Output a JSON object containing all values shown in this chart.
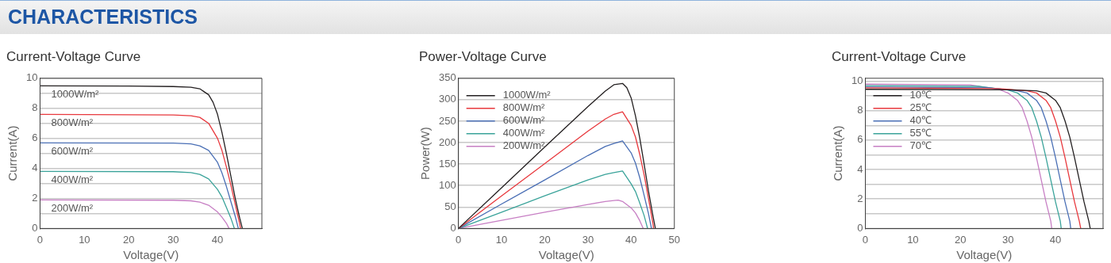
{
  "chart_data": [
    {
      "type": "other",
      "title": "CHARACTERISTICS"
    },
    {
      "type": "line",
      "title": "Current-Voltage Curve",
      "xlabel": "Voltage(V)",
      "ylabel": "Current(A)",
      "xlim": [
        0,
        50
      ],
      "xticks": [
        0,
        10,
        20,
        30,
        40
      ],
      "ylim": [
        0,
        10
      ],
      "yticks": [
        0,
        {
          "value": 1,
          "label": null
        },
        2,
        {
          "value": 3,
          "label": null
        },
        4,
        {
          "value": 5,
          "label": null
        },
        6,
        {
          "value": 7,
          "label": null
        },
        8,
        {
          "value": 9,
          "label": null
        },
        10
      ],
      "grid": "y",
      "legend": false,
      "marker": "none",
      "series": [
        {
          "name": "1000W/m²",
          "color": "#231f20",
          "x": [
            0,
            20,
            30,
            34,
            36,
            38,
            39,
            40,
            41,
            42,
            43,
            44,
            45,
            45.6
          ],
          "values": [
            9.5,
            9.48,
            9.45,
            9.4,
            9.3,
            8.9,
            8.4,
            7.6,
            6.4,
            5,
            3.5,
            2,
            0.7,
            0
          ]
        },
        {
          "name": "800W/m²",
          "color": "#e8383d",
          "x": [
            0,
            30,
            34,
            36,
            38,
            40,
            41,
            42,
            43,
            44,
            45,
            45.2
          ],
          "values": [
            7.6,
            7.56,
            7.5,
            7.4,
            7.0,
            6.0,
            5.2,
            4.1,
            2.9,
            1.6,
            0.3,
            0
          ]
        },
        {
          "name": "600W/m²",
          "color": "#4a6fb5",
          "x": [
            0,
            30,
            34,
            36,
            38,
            40,
            41,
            42,
            43,
            44,
            44.7
          ],
          "values": [
            5.7,
            5.68,
            5.63,
            5.5,
            5.2,
            4.4,
            3.7,
            2.8,
            1.8,
            0.8,
            0
          ]
        },
        {
          "name": "400W/m²",
          "color": "#3aa39a",
          "x": [
            0,
            30,
            34,
            36,
            38,
            40,
            41,
            42,
            43,
            43.8
          ],
          "values": [
            3.8,
            3.78,
            3.72,
            3.6,
            3.3,
            2.6,
            2.1,
            1.4,
            0.7,
            0
          ]
        },
        {
          "name": "200W/m²",
          "color": "#c77fc4",
          "x": [
            0,
            30,
            34,
            36,
            38,
            40,
            41,
            42,
            42.6
          ],
          "values": [
            1.9,
            1.88,
            1.84,
            1.75,
            1.55,
            1.1,
            0.75,
            0.35,
            0
          ]
        }
      ]
    },
    {
      "type": "line",
      "title": "Power-Voltage Curve",
      "xlabel": "Voltage(V)",
      "ylabel": "Power(W)",
      "xlim": [
        0,
        50
      ],
      "xticks": [
        0,
        10,
        20,
        30,
        40,
        50
      ],
      "ylim": [
        0,
        350
      ],
      "yticks": [
        0,
        50,
        100,
        150,
        200,
        250,
        300,
        350
      ],
      "grid": "y",
      "legend": "top left",
      "marker": "none",
      "series": [
        {
          "name": "1000W/m²",
          "color": "#231f20",
          "x": [
            0,
            10,
            20,
            30,
            34,
            36,
            38,
            39,
            40,
            41,
            42,
            43,
            44,
            45,
            45.6
          ],
          "values": [
            0,
            95,
            190,
            284,
            320,
            335,
            338,
            328,
            304,
            262,
            210,
            150,
            88,
            32,
            0
          ]
        },
        {
          "name": "800W/m²",
          "color": "#e8383d",
          "x": [
            0,
            10,
            20,
            30,
            34,
            36,
            38,
            40,
            41,
            42,
            43,
            44,
            45,
            45.2
          ],
          "values": [
            0,
            76,
            151,
            227,
            255,
            266,
            272,
            240,
            213,
            172,
            125,
            70,
            14,
            0
          ]
        },
        {
          "name": "600W/m²",
          "color": "#4a6fb5",
          "x": [
            0,
            10,
            20,
            30,
            34,
            36,
            38,
            40,
            41,
            42,
            43,
            44,
            44.7
          ],
          "values": [
            0,
            57,
            113,
            170,
            191,
            198,
            204,
            176,
            152,
            118,
            77,
            35,
            0
          ]
        },
        {
          "name": "400W/m²",
          "color": "#3aa39a",
          "x": [
            0,
            10,
            20,
            30,
            34,
            36,
            38,
            40,
            41,
            42,
            43,
            43.8
          ],
          "values": [
            0,
            38,
            76,
            113,
            126,
            130,
            134,
            104,
            86,
            59,
            30,
            0
          ]
        },
        {
          "name": "200W/m²",
          "color": "#c77fc4",
          "x": [
            0,
            10,
            20,
            30,
            34,
            36,
            37,
            38,
            40,
            41,
            42,
            42.8
          ],
          "values": [
            0,
            19,
            38,
            56,
            63,
            65,
            66,
            63,
            48,
            36,
            18,
            0
          ]
        }
      ]
    },
    {
      "type": "line",
      "title": "Current-Voltage Curve",
      "xlabel": "Voltage(V)",
      "ylabel": "Current(A)",
      "xlim": [
        0,
        50
      ],
      "xticks": [
        0,
        10,
        20,
        30,
        40
      ],
      "ylim": [
        0,
        10.2
      ],
      "yticks": [
        0,
        {
          "value": 1,
          "label": null
        },
        2,
        {
          "value": 3,
          "label": null
        },
        4,
        {
          "value": 5,
          "label": null
        },
        6,
        {
          "value": 7,
          "label": null
        },
        8,
        {
          "value": 9,
          "label": null
        },
        10
      ],
      "grid": "y",
      "legend": "top left",
      "marker": "none",
      "series": [
        {
          "name": "10℃",
          "color": "#231f20",
          "x": [
            0,
            30,
            36,
            38,
            40,
            41,
            42,
            43,
            44,
            45,
            46,
            47,
            47.3
          ],
          "values": [
            9.45,
            9.42,
            9.35,
            9.2,
            8.7,
            8.2,
            7.3,
            6.2,
            4.8,
            3.3,
            1.8,
            0.5,
            0
          ]
        },
        {
          "name": "25℃",
          "color": "#e8383d",
          "x": [
            0,
            28,
            34,
            36,
            38,
            39,
            40,
            41,
            42,
            43,
            44,
            45,
            45.3
          ],
          "values": [
            9.55,
            9.5,
            9.35,
            9.2,
            8.7,
            8.2,
            7.3,
            6.2,
            4.8,
            3.3,
            1.8,
            0.5,
            0
          ]
        },
        {
          "name": "40℃",
          "color": "#4a6fb5",
          "x": [
            0,
            26,
            32,
            34,
            36,
            37,
            38,
            39,
            40,
            41,
            42,
            43,
            43.2
          ],
          "values": [
            9.6,
            9.55,
            9.35,
            9.2,
            8.7,
            8.2,
            7.3,
            6.2,
            4.8,
            3.3,
            1.8,
            0.5,
            0
          ]
        },
        {
          "name": "55℃",
          "color": "#3aa39a",
          "x": [
            0,
            24,
            30,
            32,
            34,
            35,
            36,
            37,
            38,
            39,
            40,
            41,
            41.2
          ],
          "values": [
            9.7,
            9.65,
            9.4,
            9.2,
            8.7,
            8.2,
            7.3,
            6.2,
            4.8,
            3.3,
            1.8,
            0.5,
            0
          ]
        },
        {
          "name": "70℃",
          "color": "#c77fc4",
          "x": [
            0,
            22,
            28,
            30,
            32,
            33,
            34,
            35,
            36,
            37,
            38,
            39,
            39.2
          ],
          "values": [
            9.8,
            9.75,
            9.45,
            9.2,
            8.7,
            8.2,
            7.3,
            6.2,
            4.8,
            3.3,
            1.8,
            0.5,
            0
          ]
        }
      ]
    }
  ]
}
